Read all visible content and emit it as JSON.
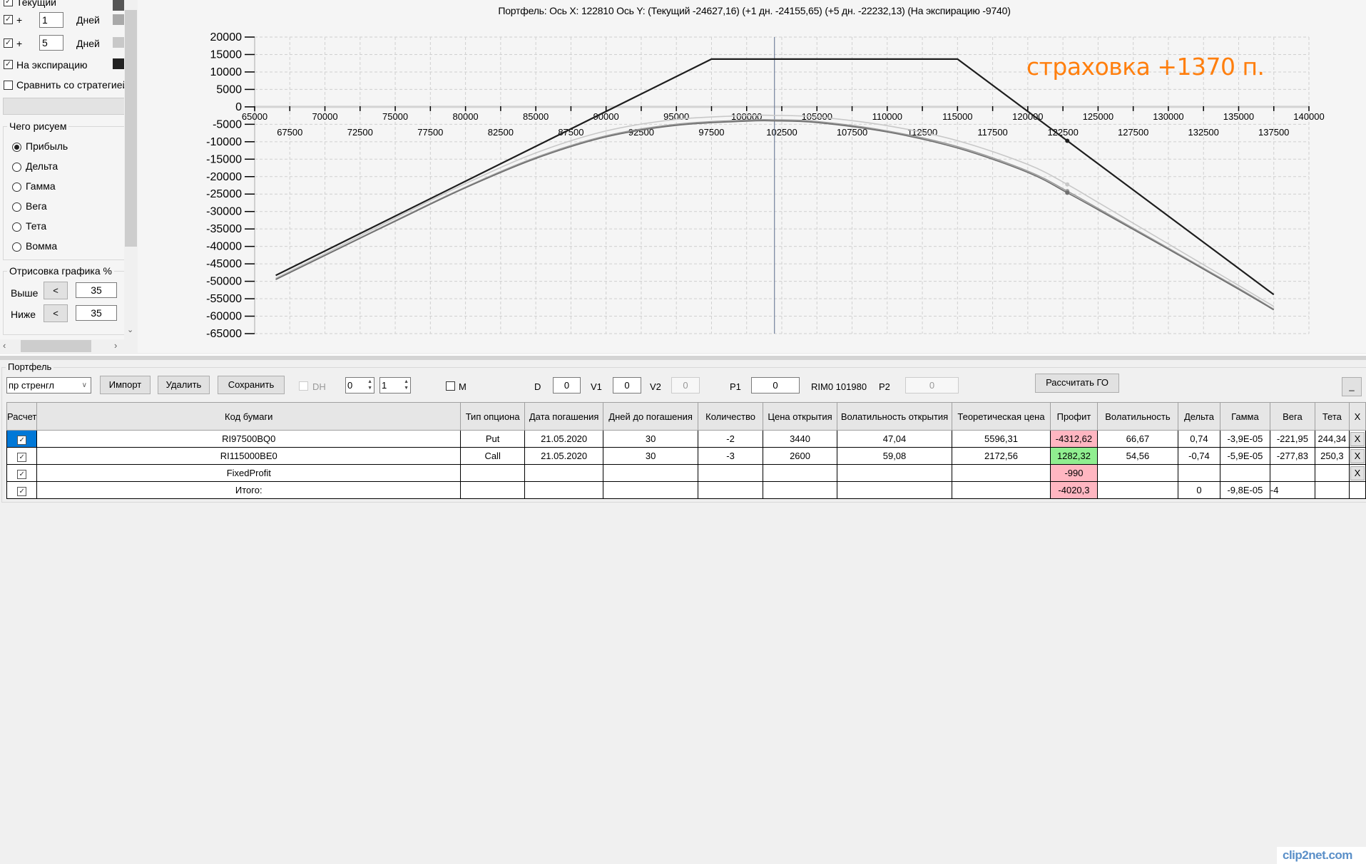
{
  "left_panel": {
    "series_toggles": [
      {
        "label": "Текущий",
        "checked": true,
        "color": "#555555"
      },
      {
        "prefix": "+",
        "days": "1",
        "unit": "Дней",
        "checked": true,
        "color": "#a9a9a9"
      },
      {
        "prefix": "+",
        "days": "5",
        "unit": "Дней",
        "checked": true,
        "color": "#c8c8c8"
      },
      {
        "label": "На экспирацию",
        "checked": true,
        "color": "#222222"
      }
    ],
    "compare": {
      "label": "Сравнить со стратегией",
      "checked": false
    },
    "draw_group": {
      "title": "Чего рисуем",
      "options": [
        "Прибыль",
        "Дельта",
        "Гамма",
        "Вега",
        "Тета",
        "Вомма"
      ],
      "selected": "Прибыль"
    },
    "render_group": {
      "title": "Отрисовка графика %",
      "above": {
        "label": "Выше",
        "button": "<",
        "value": "35"
      },
      "below": {
        "label": "Ниже",
        "button": "<",
        "value": "35"
      }
    }
  },
  "chart": {
    "title": "Портфель: Ось X: 122810 Ось Y:  (Текущий -24627,16)  (+1 дн. -24155,65)  (+5 дн. -22232,13)  (На экспирацию -9740)",
    "annotation": "страховка +1370 п.",
    "annotation_color": "#ff7f0e"
  },
  "chart_data": {
    "type": "line",
    "title": "Портфель: Ось X: 122810 Ось Y:  (Текущий -24627,16)  (+1 дн. -24155,65)  (+5 дн. -22232,13)  (На экспирацию -9740)",
    "xlim": [
      65000,
      140000
    ],
    "ylim": [
      -65000,
      20000
    ],
    "x_ticks": [
      65000,
      67500,
      70000,
      72500,
      75000,
      77500,
      80000,
      82500,
      85000,
      87500,
      90000,
      92500,
      95000,
      97500,
      100000,
      102500,
      105000,
      107500,
      110000,
      112500,
      115000,
      117500,
      120000,
      122500,
      125000,
      127500,
      130000,
      132500,
      135000,
      137500,
      140000
    ],
    "y_ticks": [
      20000,
      15000,
      10000,
      5000,
      0,
      -5000,
      -10000,
      -15000,
      -20000,
      -25000,
      -30000,
      -35000,
      -40000,
      -45000,
      -50000,
      -55000,
      -60000,
      -65000
    ],
    "grid": true,
    "cursor_x": 101980,
    "marker_x": 122810,
    "series": [
      {
        "name": "Текущий",
        "color": "#6e6e6e",
        "x": [
          66500,
          70000,
          75000,
          80000,
          85000,
          90000,
          95000,
          100000,
          101980,
          105000,
          110000,
          115000,
          120000,
          122810,
          125000,
          130000,
          135000,
          137500
        ],
        "y": [
          -49500,
          -42600,
          -32800,
          -23200,
          -14800,
          -8600,
          -5300,
          -4100,
          -4020,
          -4500,
          -7200,
          -11800,
          -18800,
          -24627,
          -29500,
          -40800,
          -52300,
          -58200
        ]
      },
      {
        "name": "+1 дн.",
        "color": "#9a9a9a",
        "x": [
          66500,
          70000,
          75000,
          80000,
          85000,
          90000,
          95000,
          100000,
          101980,
          105000,
          110000,
          115000,
          120000,
          122810,
          125000,
          130000,
          135000,
          137500
        ],
        "y": [
          -49400,
          -42500,
          -32600,
          -23000,
          -14500,
          -8300,
          -5000,
          -3800,
          -3720,
          -4200,
          -6900,
          -11400,
          -18400,
          -24156,
          -29100,
          -40500,
          -52000,
          -58000
        ]
      },
      {
        "name": "+5 дн.",
        "color": "#c8c8c8",
        "x": [
          66500,
          70000,
          75000,
          80000,
          85000,
          90000,
          95000,
          100000,
          101980,
          105000,
          110000,
          115000,
          120000,
          122810,
          125000,
          130000,
          135000,
          137500
        ],
        "y": [
          -49100,
          -42100,
          -31900,
          -22000,
          -13200,
          -6900,
          -3600,
          -2500,
          -2450,
          -2900,
          -5400,
          -9700,
          -16500,
          -22232,
          -27400,
          -39300,
          -51200,
          -57200
        ]
      },
      {
        "name": "На экспирацию",
        "color": "#1e1e1e",
        "x": [
          66500,
          97500,
          115000,
          122810,
          137500
        ],
        "y": [
          -48310,
          13690,
          13690,
          -9740,
          -53810
        ],
        "linear": true
      }
    ]
  },
  "portfolio": {
    "group_title": "Портфель",
    "strategy_select": "пр стренгл",
    "buttons": {
      "import": "Импорт",
      "delete": "Удалить",
      "save": "Сохранить",
      "calc_go": "Рассчитать ГО",
      "minimize": "_"
    },
    "dh": {
      "label": "DH",
      "checked": false
    },
    "spin1": "0",
    "spin2": "1",
    "m": {
      "label": "M",
      "checked": false
    },
    "d": {
      "label": "D",
      "value": "0"
    },
    "v1": {
      "label": "V1",
      "value": "0"
    },
    "v2": {
      "label": "V2",
      "value": "0"
    },
    "p1": {
      "label": "P1",
      "value": "0"
    },
    "underlying": "RIM0 101980",
    "p2": {
      "label": "P2",
      "value": "0"
    },
    "columns": [
      "Расчет",
      "Код бумаги",
      "Тип опциона",
      "Дата погашения",
      "Дней до погашения",
      "Количество",
      "Цена открытия",
      "Волатильность открытия",
      "Теоретическая цена",
      "Профит",
      "Волатильность",
      "Дельта",
      "Гамма",
      "Вега",
      "Тета",
      "X"
    ],
    "rows": [
      {
        "calc": true,
        "code": "RI97500BQ0",
        "type": "Put",
        "date": "21.05.2020",
        "days": "30",
        "qty": "-2",
        "open_price": "3440",
        "open_vol": "47,04",
        "theo": "5596,31",
        "profit": "-4312,62",
        "profit_sign": "neg",
        "vol": "66,67",
        "delta": "0,74",
        "gamma": "-3,9E-05",
        "vega": "-221,95",
        "theta": "244,34",
        "x": "X"
      },
      {
        "calc": true,
        "code": "RI115000BE0",
        "type": "Call",
        "date": "21.05.2020",
        "days": "30",
        "qty": "-3",
        "open_price": "2600",
        "open_vol": "59,08",
        "theo": "2172,56",
        "profit": "1282,32",
        "profit_sign": "pos",
        "vol": "54,56",
        "delta": "-0,74",
        "gamma": "-5,9E-05",
        "vega": "-277,83",
        "theta": "250,3",
        "x": "X"
      },
      {
        "calc": true,
        "code": "FixedProfit",
        "type": "",
        "date": "",
        "days": "",
        "qty": "",
        "open_price": "",
        "open_vol": "",
        "theo": "",
        "profit": "-990",
        "profit_sign": "neg",
        "vol": "",
        "delta": "",
        "gamma": "",
        "vega": "",
        "theta": "",
        "x": "X"
      },
      {
        "calc": true,
        "code": "Итого:",
        "type": "",
        "date": "",
        "days": "",
        "qty": "",
        "open_price": "",
        "open_vol": "",
        "theo": "",
        "profit": "-4020,3",
        "profit_sign": "neg",
        "vol": "",
        "delta": "0",
        "gamma": "-9,8E-05",
        "vega": "-4",
        "theta": "",
        "x": ""
      }
    ]
  },
  "watermark": "clip2net.com"
}
